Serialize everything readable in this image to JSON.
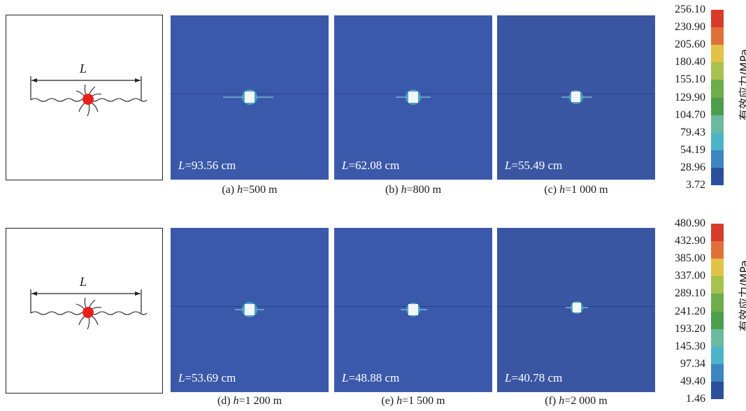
{
  "rows": [
    {
      "schematic_label": "L",
      "panels": [
        {
          "length_label": "L",
          "length_value": "=93.56 cm",
          "caption_prefix": "(a) ",
          "caption_var": "h",
          "caption_value": "=500 m",
          "crack_length_cm": 93.56
        },
        {
          "length_label": "L",
          "length_value": "=62.08 cm",
          "caption_prefix": "(b) ",
          "caption_var": "h",
          "caption_value": "=800 m",
          "crack_length_cm": 62.08
        },
        {
          "length_label": "L",
          "length_value": "=55.49 cm",
          "caption_prefix": "(c) ",
          "caption_var": "h",
          "caption_value": "=1 000 m",
          "crack_length_cm": 55.49
        }
      ],
      "legend": {
        "title": "有效应力/MPa",
        "ticks": [
          "256.10",
          "230.90",
          "205.60",
          "180.40",
          "155.10",
          "129.90",
          "104.70",
          "79.43",
          "54.19",
          "28.96",
          "3.72"
        ]
      }
    },
    {
      "schematic_label": "L",
      "panels": [
        {
          "length_label": "L",
          "length_value": "=53.69 cm",
          "caption_prefix": "(d) ",
          "caption_var": "h",
          "caption_value": "=1 200 m",
          "crack_length_cm": 53.69
        },
        {
          "length_label": "L",
          "length_value": "=48.88 cm",
          "caption_prefix": "(e) ",
          "caption_var": "h",
          "caption_value": "=1 500 m",
          "crack_length_cm": 48.88
        },
        {
          "length_label": "L",
          "length_value": "=40.78 cm",
          "caption_prefix": "(f) ",
          "caption_var": "h",
          "caption_value": "=2 000 m",
          "crack_length_cm": 40.78
        }
      ],
      "legend": {
        "title": "有效应力/MPa",
        "ticks": [
          "480.90",
          "432.90",
          "385.00",
          "337.00",
          "289.10",
          "241.20",
          "193.20",
          "145.30",
          "97.34",
          "49.40",
          "1.46"
        ]
      }
    }
  ],
  "colors": {
    "scale": [
      "#d83a2c",
      "#e0703a",
      "#e2c247",
      "#a7c24e",
      "#6fac4a",
      "#4e9d4c",
      "#6bb9a0",
      "#4db3c8",
      "#3d86c0",
      "#2b4f9c"
    ],
    "background_field": "#3b59aa",
    "blast_hole": "#e8201c"
  }
}
